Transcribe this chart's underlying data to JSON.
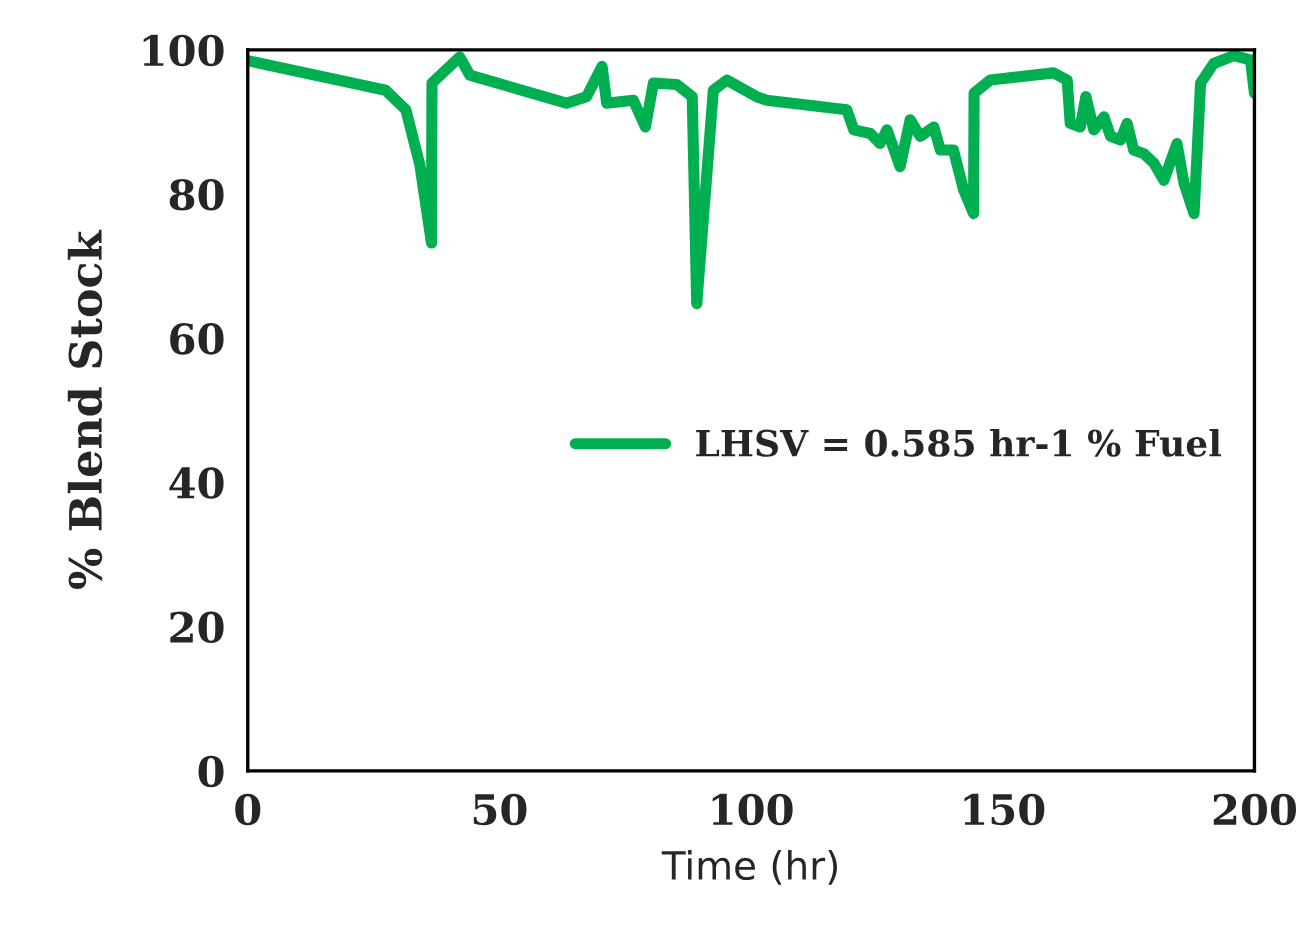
{
  "chart_data": {
    "type": "line",
    "xlabel": "Time (hr)",
    "ylabel": "% Blend Stock",
    "xlim": [
      0,
      200
    ],
    "xticks": [
      0,
      50,
      100,
      150,
      200
    ],
    "ylim": [
      0,
      100
    ],
    "yticks": [
      0,
      20,
      40,
      60,
      80,
      100
    ],
    "grid": false,
    "legend": "right",
    "marker": "none",
    "line_style": "solid",
    "series": [
      {
        "name": "LHSV = 0.585 hr-1 % Fuel",
        "color": "#00b050",
        "x": [
          0,
          27.4,
          31.4,
          34.2,
          36.5,
          36.6,
          42.1,
          44.1,
          63.3,
          67.3,
          70.4,
          71.3,
          76.6,
          79,
          80.6,
          85.2,
          88.3,
          89.2,
          92.5,
          95.2,
          101.1,
          103.1,
          119,
          120.4,
          123.7,
          125.6,
          127,
          129.6,
          131.6,
          133.6,
          136.3,
          137.6,
          140.2,
          142.2,
          144.2,
          144.3,
          147.5,
          160.1,
          162.8,
          163.4,
          165.4,
          166.5,
          168.1,
          170.1,
          171.4,
          173.4,
          174.7,
          176,
          178,
          180,
          182,
          184.6,
          186,
          188,
          189.3,
          191.9,
          195.9,
          199.2,
          200
        ],
        "values": [
          98.5,
          94.4,
          91.7,
          84,
          73.2,
          95.4,
          99,
          96.5,
          92.6,
          93.5,
          97.7,
          92.6,
          93,
          89.3,
          95.4,
          95.2,
          93.5,
          64.8,
          94.4,
          95.8,
          93.5,
          93,
          91.7,
          88.9,
          88.4,
          87,
          88.9,
          83.8,
          90.3,
          88,
          89.3,
          86.1,
          86.1,
          80.6,
          77.3,
          94,
          95.8,
          96.8,
          95.8,
          89.8,
          89.3,
          93.5,
          88.9,
          90.7,
          88,
          87.5,
          89.8,
          86.1,
          85.6,
          84.3,
          81.9,
          87,
          81.5,
          77.3,
          95.4,
          98.1,
          99.2,
          98.6,
          94
        ]
      }
    ]
  }
}
